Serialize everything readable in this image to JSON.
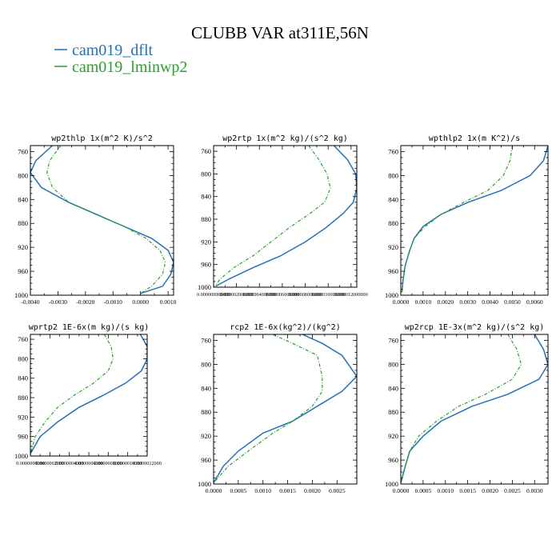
{
  "figure_title": "CLUBB VAR at311E,56N",
  "legend": [
    {
      "label": "cam019_dflt",
      "color": "#2471b5"
    },
    {
      "label": "cam019_lminwp2",
      "color": "#2ca02c"
    }
  ],
  "chart_data": [
    {
      "type": "line",
      "title": "wp2thlp   1x(m^2 K)/s^2",
      "xlim": [
        -0.004,
        0.0012
      ],
      "ylim": [
        1000,
        750
      ],
      "xticks": [
        "-0.0040",
        "-0.0030",
        "-0.0020",
        "-0.0010",
        "0.0000",
        "0.0010"
      ],
      "xtick_values": [
        -0.004,
        -0.003,
        -0.002,
        -0.001,
        0.0,
        0.001
      ],
      "yticks": [
        "760",
        "800",
        "840",
        "880",
        "920",
        "960",
        "1000"
      ],
      "ytick_values": [
        760,
        800,
        840,
        880,
        920,
        960,
        1000
      ],
      "series": [
        {
          "name": "cam019_dflt",
          "x": [
            -0.0032,
            -0.0038,
            -0.004,
            -0.0036,
            -0.0026,
            -0.0016,
            -0.0006,
            0.0004,
            0.001,
            0.0012,
            0.0011,
            0.0008,
            0.0
          ],
          "y": [
            750,
            775,
            795,
            820,
            845,
            865,
            885,
            905,
            925,
            945,
            965,
            985,
            997
          ]
        },
        {
          "name": "cam019_lminwp2",
          "x": [
            -0.0029,
            -0.0033,
            -0.0034,
            -0.0032,
            -0.0026,
            -0.0016,
            -0.0006,
            0.0002,
            0.0007,
            0.0009,
            0.0008,
            0.0004,
            0.0
          ],
          "y": [
            750,
            775,
            795,
            820,
            845,
            865,
            885,
            905,
            925,
            945,
            965,
            985,
            997
          ]
        }
      ]
    },
    {
      "type": "line",
      "title": "wp2rtp   1x(m^2 kg)/(s^2 kg)",
      "xlim": [
        0.0,
        1.25e-05
      ],
      "ylim": [
        1000,
        750
      ],
      "xticks": [
        "0.000000000000",
        "0.000002000000",
        "0.000004000000",
        "0.000006000000",
        "0.000008000000",
        "0.000010000000",
        "0.000012000000"
      ],
      "xtick_values": [
        0.0,
        2e-06,
        4e-06,
        6e-06,
        8e-06,
        1e-05,
        1.2e-05
      ],
      "yticks": [
        "760",
        "800",
        "840",
        "880",
        "920",
        "960",
        "1000"
      ],
      "ytick_values": [
        760,
        800,
        840,
        880,
        920,
        960,
        1000
      ],
      "series": [
        {
          "name": "cam019_dflt",
          "x": [
            1.05e-05,
            1.17e-05,
            1.24e-05,
            1.25e-05,
            1.22e-05,
            1.13e-05,
            9.8e-06,
            8e-06,
            5.8e-06,
            3.5e-06,
            1.4e-06,
            2e-07
          ],
          "y": [
            750,
            775,
            800,
            825,
            850,
            870,
            895,
            920,
            945,
            965,
            985,
            998
          ]
        },
        {
          "name": "cam019_lminwp2",
          "x": [
            8.3e-06,
            9.2e-06,
            9.9e-06,
            1.02e-05,
            9.7e-06,
            8.4e-06,
            6.6e-06,
            5e-06,
            3.4e-06,
            1.8e-06,
            6e-07,
            1e-07
          ],
          "y": [
            750,
            775,
            800,
            825,
            850,
            870,
            895,
            920,
            945,
            965,
            985,
            998
          ]
        }
      ]
    },
    {
      "type": "line",
      "title": "wpthlp2   1x(m K^2)/s",
      "xlim": [
        0.0,
        0.0066
      ],
      "ylim": [
        1000,
        750
      ],
      "xticks": [
        "0.0000",
        "0.0010",
        "0.0020",
        "0.0030",
        "0.0040",
        "0.0050",
        "0.0060"
      ],
      "xtick_values": [
        0.0,
        0.001,
        0.002,
        0.003,
        0.004,
        0.005,
        0.006
      ],
      "yticks": [
        "760",
        "800",
        "840",
        "880",
        "920",
        "960",
        "1000"
      ],
      "ytick_values": [
        760,
        800,
        840,
        880,
        920,
        960,
        1000
      ],
      "series": [
        {
          "name": "cam019_dflt",
          "x": [
            0.0066,
            0.0064,
            0.0058,
            0.0045,
            0.003,
            0.0018,
            0.001,
            0.0006,
            0.0004,
            0.0002,
            0.0001,
            5e-05
          ],
          "y": [
            750,
            775,
            800,
            825,
            845,
            865,
            885,
            905,
            925,
            950,
            975,
            995
          ]
        },
        {
          "name": "cam019_lminwp2",
          "x": [
            0.005,
            0.0049,
            0.0046,
            0.0039,
            0.0028,
            0.0018,
            0.0011,
            0.0006,
            0.0004,
            0.0002,
            0.0001,
            5e-05
          ],
          "y": [
            750,
            775,
            800,
            825,
            845,
            865,
            885,
            905,
            925,
            950,
            975,
            995
          ]
        }
      ]
    },
    {
      "type": "line",
      "title": "wprtp2   1E-6x(m kg)/(s kg)",
      "xlim": [
        0.0,
        1.2e-06
      ],
      "ylim": [
        1000,
        750
      ],
      "xticks": [
        "0.0000000000",
        "0.0000002000",
        "0.0000004000",
        "0.0000006000",
        "0.0000008000",
        "0.0000010000",
        "0.0000012000"
      ],
      "xtick_values": [
        0.0,
        2e-07,
        4e-07,
        6e-07,
        8e-07,
        1e-06,
        1.2e-06
      ],
      "yticks": [
        "760",
        "800",
        "840",
        "880",
        "920",
        "960",
        "1000"
      ],
      "ytick_values": [
        760,
        800,
        840,
        880,
        920,
        960,
        1000
      ],
      "series": [
        {
          "name": "cam019_dflt",
          "x": [
            1.13e-06,
            1.2e-06,
            1.2e-06,
            1.14e-06,
            9.8e-07,
            7.5e-07,
            5e-07,
            2.8e-07,
            1e-07,
            0.0
          ],
          "y": [
            750,
            775,
            800,
            825,
            850,
            875,
            900,
            930,
            960,
            995
          ]
        },
        {
          "name": "cam019_lminwp2",
          "x": [
            7.6e-07,
            8.3e-07,
            8.5e-07,
            8e-07,
            6.5e-07,
            4.5e-07,
            2.8e-07,
            1.5e-07,
            5e-08,
            0.0
          ],
          "y": [
            750,
            775,
            800,
            825,
            850,
            875,
            900,
            930,
            960,
            995
          ]
        }
      ]
    },
    {
      "type": "line",
      "title": "rcp2   1E-6x(kg^2)/(kg^2)",
      "xlim": [
        0.0,
        0.0029
      ],
      "ylim": [
        1000,
        750
      ],
      "xticks": [
        "0.0000",
        "0.0005",
        "0.0010",
        "0.0015",
        "0.0020",
        "0.0025"
      ],
      "xtick_values": [
        0.0,
        0.0005,
        0.001,
        0.0015,
        0.002,
        0.0025
      ],
      "yticks": [
        "760",
        "800",
        "840",
        "880",
        "920",
        "960",
        "1000"
      ],
      "ytick_values": [
        760,
        800,
        840,
        880,
        920,
        960,
        1000
      ],
      "series": [
        {
          "name": "cam019_dflt",
          "x": [
            0.0018,
            0.0022,
            0.0026,
            0.0029,
            0.0026,
            0.0021,
            0.0016,
            0.001,
            0.0005,
            0.0002,
            0.0
          ],
          "y": [
            750,
            765,
            785,
            820,
            845,
            870,
            895,
            915,
            945,
            970,
            998
          ]
        },
        {
          "name": "cam019_lminwp2",
          "x": [
            0.0012,
            0.0016,
            0.0021,
            0.0022,
            0.0022,
            0.002,
            0.0016,
            0.0012,
            0.0007,
            0.0003,
            0.0
          ],
          "y": [
            750,
            765,
            785,
            820,
            845,
            870,
            895,
            915,
            945,
            970,
            998
          ]
        }
      ]
    },
    {
      "type": "line",
      "title": "wp2rcp   1E-3x(m^2 kg)/(s^2 kg)",
      "xlim": [
        0.0,
        0.0033
      ],
      "ylim": [
        1000,
        750
      ],
      "xticks": [
        "0.0000",
        "0.0005",
        "0.0010",
        "0.0015",
        "0.0020",
        "0.0025",
        "0.0030"
      ],
      "xtick_values": [
        0.0,
        0.0005,
        0.001,
        0.0015,
        0.002,
        0.0025,
        0.003
      ],
      "yticks": [
        "760",
        "800",
        "840",
        "880",
        "920",
        "960",
        "1000"
      ],
      "ytick_values": [
        760,
        800,
        840,
        880,
        920,
        960,
        1000
      ],
      "series": [
        {
          "name": "cam019_dflt",
          "x": [
            0.003,
            0.0032,
            0.0033,
            0.0031,
            0.0024,
            0.0016,
            0.0009,
            0.0005,
            0.0002,
            0.0001,
            0.0
          ],
          "y": [
            750,
            775,
            800,
            825,
            850,
            870,
            895,
            920,
            945,
            970,
            998
          ]
        },
        {
          "name": "cam019_lminwp2",
          "x": [
            0.0024,
            0.0026,
            0.0027,
            0.0025,
            0.0019,
            0.0013,
            0.0008,
            0.0004,
            0.0002,
            0.0001,
            0.0
          ],
          "y": [
            750,
            775,
            800,
            825,
            850,
            870,
            895,
            920,
            945,
            970,
            998
          ]
        }
      ]
    }
  ]
}
